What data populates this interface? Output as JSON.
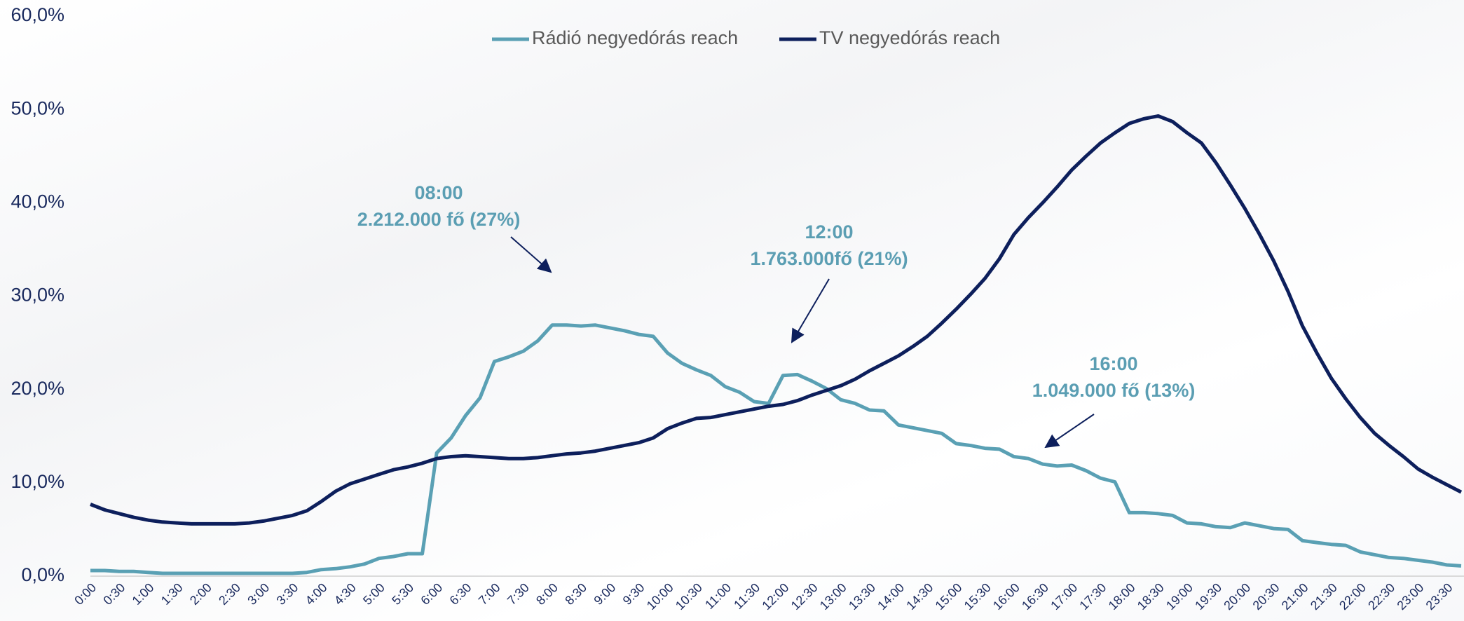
{
  "chart_data": {
    "type": "line",
    "legend": "top",
    "categories": [
      "0:00",
      null,
      "0:30",
      null,
      "1:00",
      null,
      "1:30",
      null,
      "2:00",
      null,
      "2:30",
      null,
      "3:00",
      null,
      "3:30",
      null,
      "4:00",
      null,
      "4:30",
      null,
      "5:00",
      null,
      "5:30",
      null,
      "6:00",
      null,
      "6:30",
      null,
      "7:00",
      null,
      "7:30",
      null,
      "8:00",
      null,
      "8:30",
      null,
      "9:00",
      null,
      "9:30",
      null,
      "10:00",
      null,
      "10:30",
      null,
      "11:00",
      null,
      "11:30",
      null,
      "12:00",
      null,
      "12:30",
      null,
      "13:00",
      null,
      "13:30",
      null,
      "14:00",
      null,
      "14:30",
      null,
      "15:00",
      null,
      "15:30",
      null,
      "16:00",
      null,
      "16:30",
      null,
      "17:00",
      null,
      "17:30",
      null,
      "18:00",
      null,
      "18:30",
      null,
      "19:00",
      null,
      "19:30",
      null,
      "20:00",
      null,
      "20:30",
      null,
      "21:00",
      null,
      "21:30",
      null,
      "22:00",
      null,
      "22:30",
      null,
      "23:00",
      null,
      "23:30",
      null
    ],
    "series": [
      {
        "name": "Rádió negyedórás reach",
        "color": "#5aa0b4",
        "values": [
          0.6,
          0.6,
          0.5,
          0.5,
          0.4,
          0.3,
          0.3,
          0.3,
          0.3,
          0.3,
          0.3,
          0.3,
          0.3,
          0.3,
          0.3,
          0.4,
          0.7,
          0.8,
          1.0,
          1.3,
          1.9,
          2.1,
          2.4,
          2.4,
          13.2,
          14.8,
          17.2,
          19.1,
          23.0,
          23.5,
          24.1,
          25.2,
          26.9,
          26.9,
          26.8,
          26.9,
          26.6,
          26.3,
          25.9,
          25.7,
          23.9,
          22.8,
          22.1,
          21.5,
          20.3,
          19.7,
          18.7,
          18.5,
          21.5,
          21.6,
          20.9,
          20.1,
          18.9,
          18.5,
          17.8,
          17.7,
          16.2,
          15.9,
          15.6,
          15.3,
          14.2,
          14.0,
          13.7,
          13.6,
          12.8,
          12.6,
          12.0,
          11.8,
          11.9,
          11.3,
          10.5,
          10.1,
          6.8,
          6.8,
          6.7,
          6.5,
          5.7,
          5.6,
          5.3,
          5.2,
          5.7,
          5.4,
          5.1,
          5.0,
          3.8,
          3.6,
          3.4,
          3.3,
          2.6,
          2.3,
          2.0,
          1.9,
          1.7,
          1.5,
          1.2,
          1.1
        ]
      },
      {
        "name": "TV negyedórás reach",
        "color": "#0d1f5c",
        "values": [
          7.7,
          7.1,
          6.7,
          6.3,
          6.0,
          5.8,
          5.7,
          5.6,
          5.6,
          5.6,
          5.6,
          5.7,
          5.9,
          6.2,
          6.5,
          7.0,
          8.0,
          9.1,
          9.9,
          10.4,
          10.9,
          11.4,
          11.7,
          12.1,
          12.6,
          12.8,
          12.9,
          12.8,
          12.7,
          12.6,
          12.6,
          12.7,
          12.9,
          13.1,
          13.2,
          13.4,
          13.7,
          14.0,
          14.3,
          14.8,
          15.8,
          16.4,
          16.9,
          17.0,
          17.3,
          17.6,
          17.9,
          18.2,
          18.4,
          18.8,
          19.4,
          19.9,
          20.4,
          21.1,
          22.0,
          22.8,
          23.6,
          24.6,
          25.7,
          27.1,
          28.6,
          30.2,
          31.9,
          34.0,
          36.6,
          38.4,
          40.0,
          41.7,
          43.5,
          45.0,
          46.4,
          47.5,
          48.5,
          49.0,
          49.3,
          48.7,
          47.5,
          46.4,
          44.3,
          41.9,
          39.4,
          36.7,
          33.8,
          30.5,
          26.8,
          23.9,
          21.2,
          19.0,
          17.0,
          15.3,
          14.0,
          12.8,
          11.5,
          10.6,
          9.8,
          9.0
        ]
      }
    ],
    "ylim": [
      0,
      60
    ],
    "yticks": [
      {
        "value": 0,
        "label": "0,0%"
      },
      {
        "value": 10,
        "label": "10,0%"
      },
      {
        "value": 20,
        "label": "20,0%"
      },
      {
        "value": 30,
        "label": "30,0%"
      },
      {
        "value": 40,
        "label": "40,0%"
      },
      {
        "value": 50,
        "label": "50,0%"
      },
      {
        "value": 60,
        "label": "60,0%"
      }
    ],
    "annotations": [
      {
        "lines": [
          "08:00",
          "2.212.000 fő (27%)"
        ]
      },
      {
        "lines": [
          "12:00",
          "1.763.000fő (21%)"
        ]
      },
      {
        "lines": [
          "16:00",
          "1.049.000 fő (13%)"
        ]
      }
    ]
  }
}
